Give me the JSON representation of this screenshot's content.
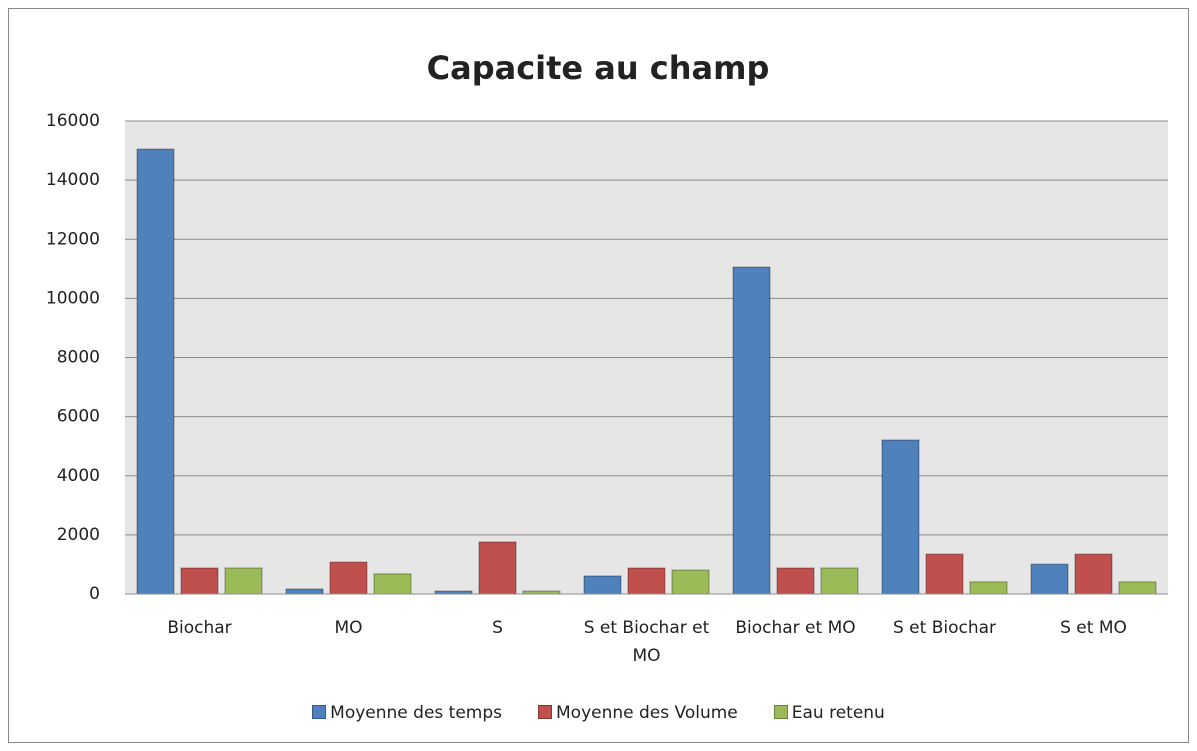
{
  "chart_data": {
    "type": "bar",
    "title": "Capacite au champ",
    "categories": [
      "Biochar",
      "MO",
      "S",
      "S et Biochar et MO",
      "Biochar et MO",
      "S et Biochar",
      "S et MO"
    ],
    "series": [
      {
        "name": "Moyenne des temps",
        "color": "#4f81bd",
        "values": [
          15050,
          170,
          100,
          610,
          11060,
          5210,
          1010
        ]
      },
      {
        "name": "Moyenne des Volume",
        "color": "#c0504d",
        "values": [
          880,
          1080,
          1760,
          880,
          880,
          1350,
          1350
        ]
      },
      {
        "name": "Eau retenu",
        "color": "#9bbb59",
        "values": [
          880,
          680,
          100,
          810,
          880,
          410,
          410
        ]
      }
    ],
    "ylim": [
      0,
      16000
    ],
    "yticks": [
      0,
      2000,
      4000,
      6000,
      8000,
      10000,
      12000,
      14000,
      16000
    ],
    "grid": true,
    "legend": "bottom"
  }
}
